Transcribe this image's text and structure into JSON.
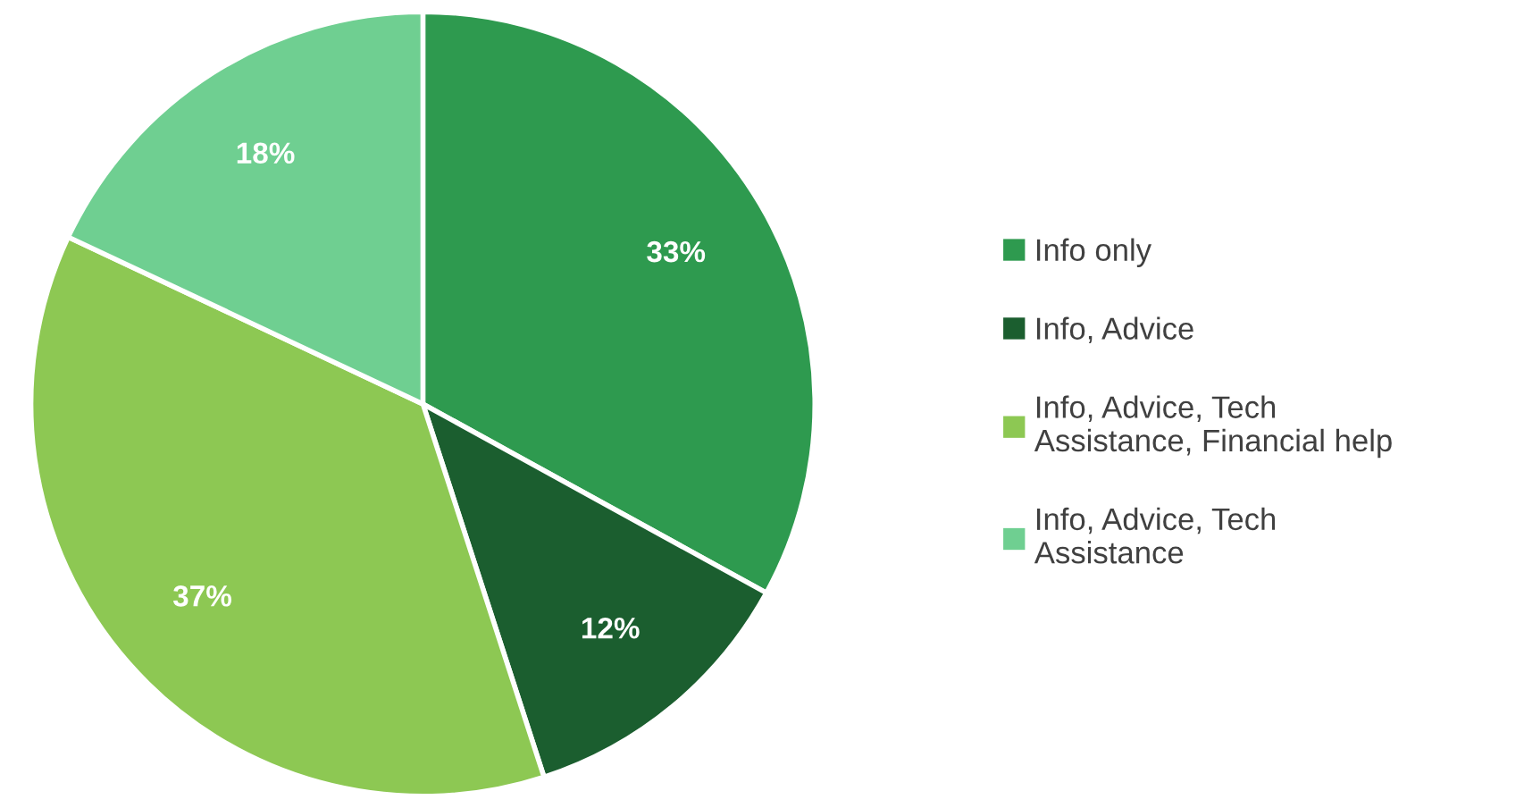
{
  "chart_data": {
    "type": "pie",
    "categories": [
      "Info only",
      "Info, Advice",
      "Info, Advice, Tech\nAssistance, Financial help",
      "Info, Advice, Tech\nAssistance"
    ],
    "values": [
      33,
      12,
      37,
      18
    ],
    "colors": [
      "#2e9a4f",
      "#1b5e2f",
      "#8dc853",
      "#6fcf91"
    ],
    "value_labels": [
      "33%",
      "12%",
      "37%",
      "18%"
    ],
    "legend": "right"
  }
}
